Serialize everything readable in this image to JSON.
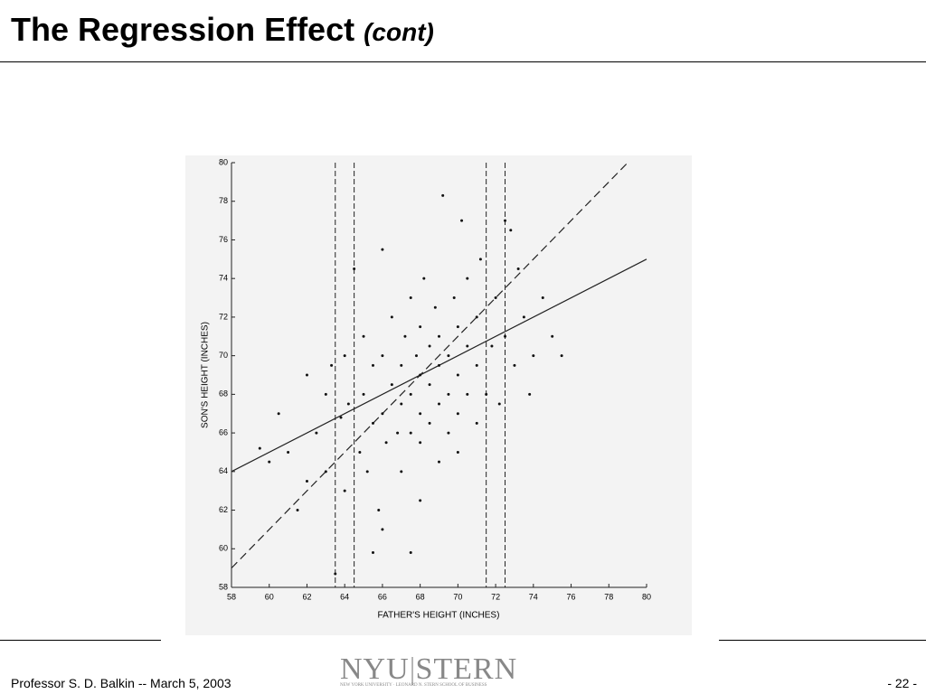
{
  "header": {
    "title": "The Regression Effect",
    "title_suffix": "(cont)"
  },
  "chart_data": {
    "type": "scatter",
    "xlabel": "FATHER'S HEIGHT (INCHES)",
    "ylabel": "SON'S HEIGHT (INCHES)",
    "xlim": [
      58,
      80
    ],
    "ylim": [
      58,
      80
    ],
    "xticks": [
      58,
      60,
      62,
      64,
      66,
      68,
      70,
      72,
      74,
      76,
      78,
      80
    ],
    "yticks": [
      58,
      60,
      62,
      64,
      66,
      68,
      70,
      72,
      74,
      76,
      78,
      80
    ],
    "color": "#111111",
    "x": [
      62,
      62.5,
      63,
      63,
      63.3,
      63.8,
      64,
      64,
      64.2,
      64.8,
      65,
      65,
      65.2,
      65.5,
      65.5,
      65.8,
      66,
      66,
      66.2,
      66.5,
      66.5,
      66.8,
      67,
      67,
      67,
      67.2,
      67.5,
      67.5,
      67.5,
      67.8,
      68,
      68,
      68,
      68,
      68,
      68.2,
      68.5,
      68.5,
      68.5,
      68.8,
      69,
      69,
      69,
      69,
      69.2,
      69.5,
      69.5,
      69.5,
      69.8,
      70,
      70,
      70,
      70,
      70.2,
      70.5,
      70.5,
      70.5,
      71,
      71,
      71,
      71.2,
      71.5,
      71.8,
      72,
      72.2,
      72.5,
      72.8,
      73,
      73.2,
      73.5,
      74,
      74.5,
      75,
      75.5,
      61,
      60.5,
      60,
      61.5,
      62,
      63.5,
      65.5,
      66,
      67.5,
      64.5,
      66,
      59.5,
      73.8,
      72.5
    ],
    "y": [
      69,
      66,
      64,
      68,
      69.5,
      66.8,
      63,
      70,
      67.5,
      65,
      68,
      71,
      64,
      66.5,
      69.5,
      62,
      67,
      70,
      65.5,
      68.5,
      72,
      66,
      64,
      67.5,
      69.5,
      71,
      66,
      68,
      73,
      70,
      62.5,
      65.5,
      67,
      69,
      71.5,
      74,
      66.5,
      68.5,
      70.5,
      72.5,
      64.5,
      67.5,
      69.5,
      71,
      78.3,
      66,
      68,
      70,
      73,
      65,
      67,
      69,
      71.5,
      77,
      68,
      70.5,
      74,
      66.5,
      69.5,
      72,
      75,
      68,
      70.5,
      73,
      67.5,
      71,
      76.5,
      69.5,
      74.5,
      72,
      70,
      73,
      71,
      70,
      65,
      67,
      64.5,
      62,
      63.5,
      58.7,
      59.8,
      61,
      59.8,
      74.5,
      75.5,
      65.2,
      68,
      77
    ],
    "regression_line": {
      "x": [
        58,
        80
      ],
      "y": [
        64,
        75
      ]
    },
    "sd_line": {
      "x": [
        58,
        79
      ],
      "y": [
        59,
        80
      ]
    },
    "vlines": [
      63.5,
      64.5,
      71.5,
      72.5
    ]
  },
  "footer": {
    "author": "Professor S. D. Balkin -- March 5, 2003",
    "page": "- 22 -",
    "logo_left": "NYU",
    "logo_right": "STERN",
    "logo_sub": "NEW YORK UNIVERSITY · LEONARD N. STERN SCHOOL OF BUSINESS"
  }
}
